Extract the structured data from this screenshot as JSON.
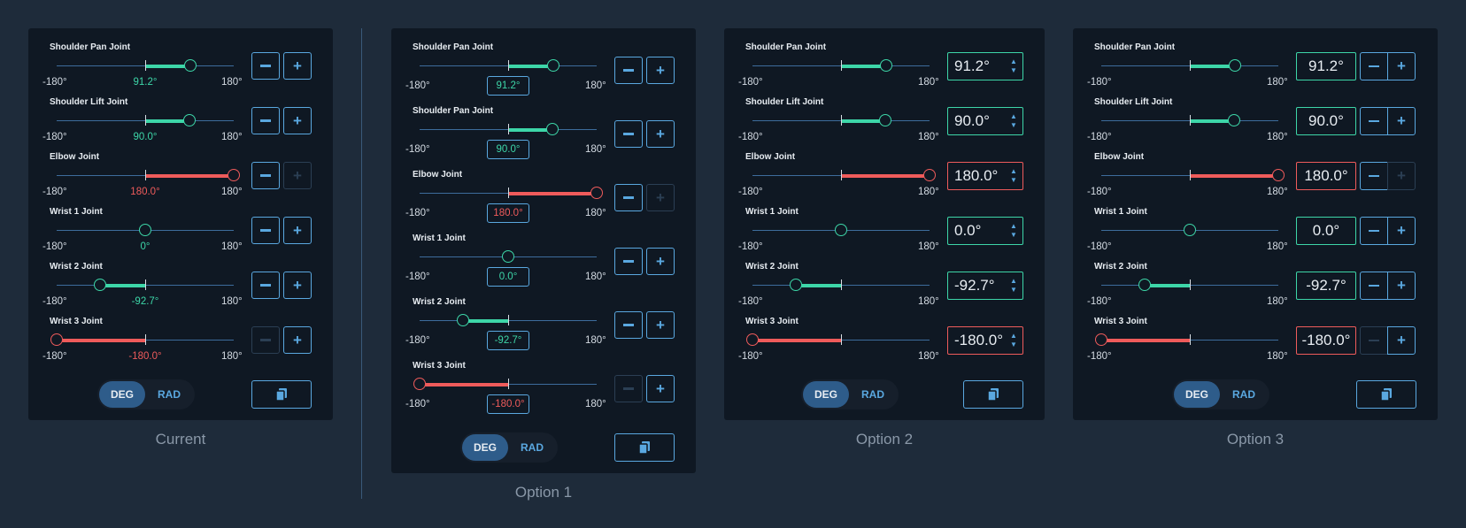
{
  "colors": {
    "ok": "#3dd6a8",
    "limit": "#ef5b5b",
    "accent": "#5aa8e0",
    "track": "#3d6c9c"
  },
  "range": {
    "min_label": "-180°",
    "max_label": "180°",
    "min": -180,
    "max": 180
  },
  "units": {
    "deg_label": "DEG",
    "rad_label": "RAD",
    "selected": "DEG"
  },
  "copy_icon": "copy-icon",
  "buttons": {
    "plus": "+"
  },
  "captions": {
    "current": "Current",
    "option1": "Option 1",
    "option2": "Option 2",
    "option3": "Option 3"
  },
  "joints": [
    {
      "name": "Shoulder Pan Joint",
      "value": 91.2,
      "display": "91.2°",
      "state": "ok"
    },
    {
      "name": "Shoulder Lift Joint",
      "value": 90.0,
      "display": "90.0°",
      "state": "ok"
    },
    {
      "name": "Elbow Joint",
      "value": 180.0,
      "display": "180.0°",
      "state": "limit"
    },
    {
      "name": "Wrist 1 Joint",
      "value": 0.0,
      "display": "0.0°",
      "state": "ok"
    },
    {
      "name": "Wrist 2 Joint",
      "value": -92.7,
      "display": "-92.7°",
      "state": "ok"
    },
    {
      "name": "Wrist 3 Joint",
      "value": -180.0,
      "display": "-180.0°",
      "state": "limit"
    }
  ],
  "current_panel": {
    "joint_names": [
      "Shoulder Pan Joint",
      "Shoulder Lift Joint",
      "Elbow Joint",
      "Wrist 1 Joint",
      "Wrist 2 Joint",
      "Wrist 3 Joint"
    ],
    "value_labels": [
      "91.2°",
      "90.0°",
      "180.0°",
      "0°",
      "-92.7°",
      "-180.0°"
    ]
  },
  "option1_panel": {
    "joint_names": [
      "Shoulder Pan Joint",
      "Shoulder Pan Joint",
      "Elbow Joint",
      "Wrist 1 Joint",
      "Wrist 2 Joint",
      "Wrist 3 Joint"
    ],
    "value_labels": [
      "91.2°",
      "90.0°",
      "180.0°",
      "0.0°",
      "-92.7°",
      "-180.0°"
    ]
  }
}
